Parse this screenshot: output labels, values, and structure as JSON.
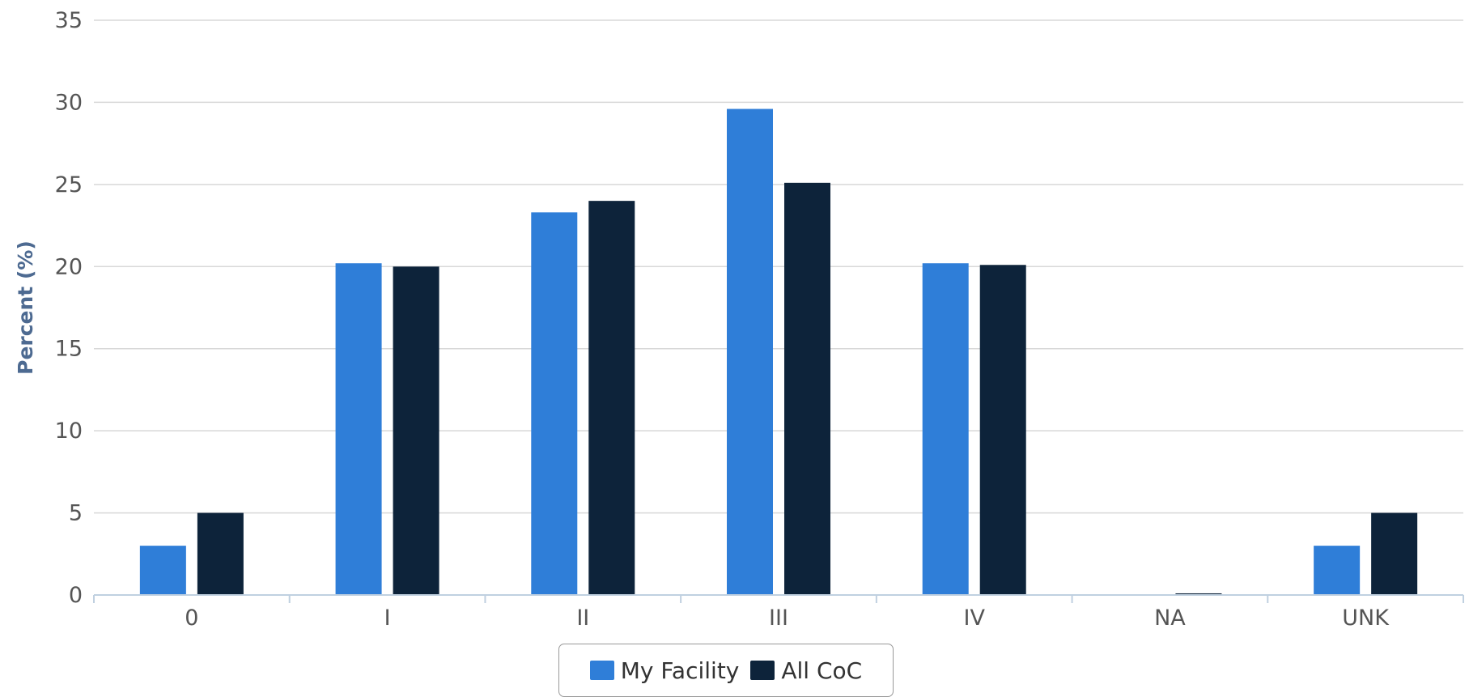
{
  "chart_data": {
    "type": "bar",
    "categories": [
      "0",
      "I",
      "II",
      "III",
      "IV",
      "NA",
      "UNK"
    ],
    "series": [
      {
        "name": "My Facility",
        "color": "#2f7ed8",
        "values": [
          3.0,
          20.2,
          23.3,
          29.6,
          20.2,
          0,
          3.0
        ]
      },
      {
        "name": "All CoC",
        "color": "#0d233a",
        "values": [
          5.0,
          20.0,
          24.0,
          25.1,
          20.1,
          0.1,
          5.0
        ]
      }
    ],
    "ylabel": "Percent (%)",
    "ylim": [
      0,
      35
    ],
    "yticks": [
      0,
      5,
      10,
      15,
      20,
      25,
      30,
      35
    ],
    "grid": true,
    "legend_position": "bottom-center"
  },
  "colors": {
    "gridline": "#d8d8d8",
    "axis_line": "#c0d0e0"
  }
}
